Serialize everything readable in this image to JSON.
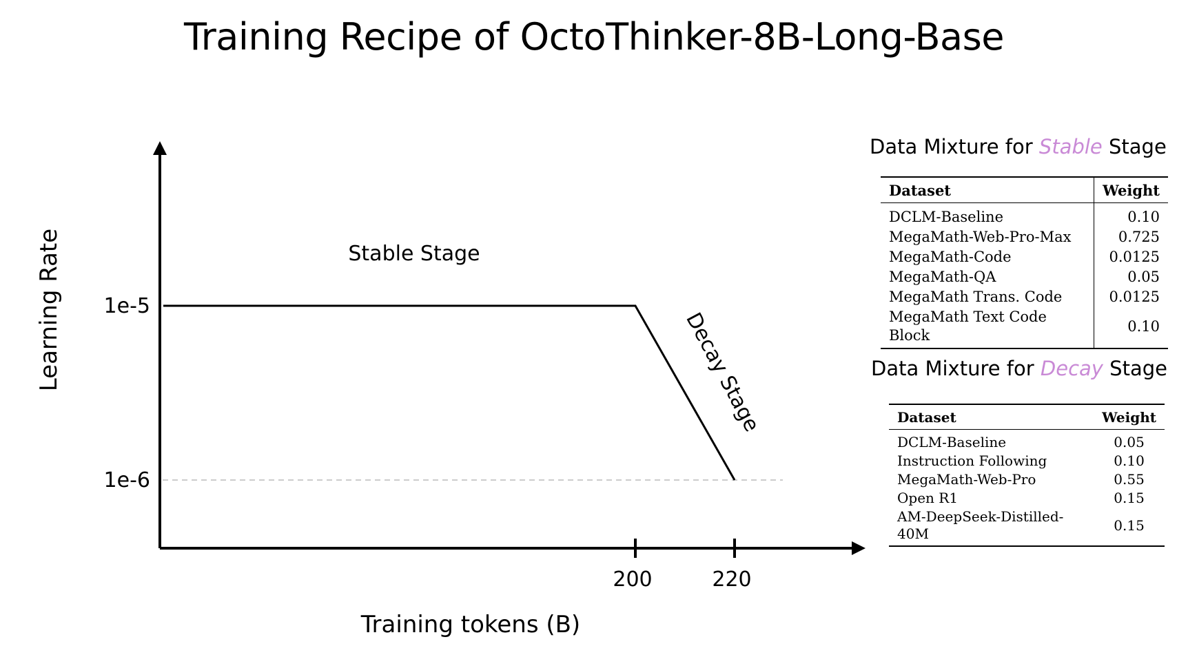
{
  "title": "Training Recipe of OctoThinker-8B-Long-Base",
  "chart_data": {
    "type": "line",
    "xlabel": "Training tokens (B)",
    "ylabel": "Learning Rate",
    "x_ticks": [
      200,
      220
    ],
    "x_tick_labels": [
      "200",
      "220"
    ],
    "y_ticks": [
      1e-05,
      1e-06
    ],
    "y_tick_labels": [
      "1e-5",
      "1e-6"
    ],
    "y_scale": "log",
    "series": [
      {
        "values": [
          [
            0,
            1e-05
          ],
          [
            200,
            1e-05
          ],
          [
            220,
            1e-06
          ]
        ]
      }
    ],
    "reference_lines": [
      {
        "y": 1e-06,
        "style": "dashed",
        "color": "#cccccc"
      }
    ],
    "annotations": [
      "Stable Stage",
      "Decay Stage"
    ],
    "grid": false
  },
  "tables": {
    "stable": {
      "heading_prefix": "Data Mixture for ",
      "heading_accent": "Stable",
      "heading_suffix": " Stage",
      "accent_color": "#c98ad6",
      "columns": [
        "Dataset",
        "Weight"
      ],
      "rows": [
        [
          "DCLM-Baseline",
          "0.10"
        ],
        [
          "MegaMath-Web-Pro-Max",
          "0.725"
        ],
        [
          "MegaMath-Code",
          "0.0125"
        ],
        [
          "MegaMath-QA",
          "0.05"
        ],
        [
          "MegaMath Trans. Code",
          "0.0125"
        ],
        [
          "MegaMath Text Code Block",
          "0.10"
        ]
      ]
    },
    "decay": {
      "heading_prefix": "Data Mixture for ",
      "heading_accent": "Decay",
      "heading_suffix": " Stage",
      "accent_color": "#c98ad6",
      "columns": [
        "Dataset",
        "Weight"
      ],
      "rows": [
        [
          "DCLM-Baseline",
          "0.05"
        ],
        [
          "Instruction Following",
          "0.10"
        ],
        [
          "MegaMath-Web-Pro",
          "0.55"
        ],
        [
          "Open R1",
          "0.15"
        ],
        [
          "AM-DeepSeek-Distilled-40M",
          "0.15"
        ]
      ]
    }
  }
}
